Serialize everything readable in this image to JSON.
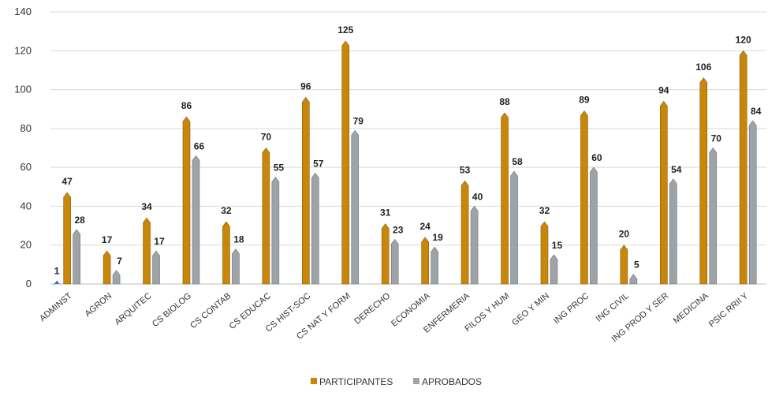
{
  "chart_data": {
    "type": "bar",
    "title": "",
    "xlabel": "",
    "ylabel": "",
    "ylim": [
      0,
      140
    ],
    "yticks": [
      0,
      20,
      40,
      60,
      80,
      100,
      120,
      140
    ],
    "grid": true,
    "legend_position": "bottom",
    "categories": [
      "ADMINST",
      "AGRON",
      "ARQUITEC",
      "CS BIOLOG",
      "CS CONTAB",
      "CS EDUCAC",
      "CS HIST-SOC",
      "CS NAT Y FORM",
      "DERECHO",
      "ECONOMIA",
      "ENFERMERIA",
      "FILOS Y HUM",
      "GEO Y MIN",
      "ING PROC",
      "ING CIVIL",
      "ING PROD Y SER",
      "MEDICINA",
      "PSIC RRII Y"
    ],
    "series": [
      {
        "name": "PARTICIPANTES",
        "color": "#c8860b",
        "values": [
          47,
          17,
          34,
          86,
          32,
          70,
          96,
          125,
          31,
          24,
          53,
          88,
          32,
          89,
          20,
          94,
          106,
          120
        ]
      },
      {
        "name": "APROBADOS",
        "color": "#9ea3a8",
        "values": [
          28,
          7,
          17,
          66,
          18,
          55,
          57,
          79,
          23,
          19,
          40,
          58,
          15,
          60,
          5,
          54,
          70,
          84
        ]
      }
    ],
    "extra_points": [
      {
        "category": "ADMINST",
        "value": 1,
        "color": "#2f6fd1"
      }
    ]
  }
}
